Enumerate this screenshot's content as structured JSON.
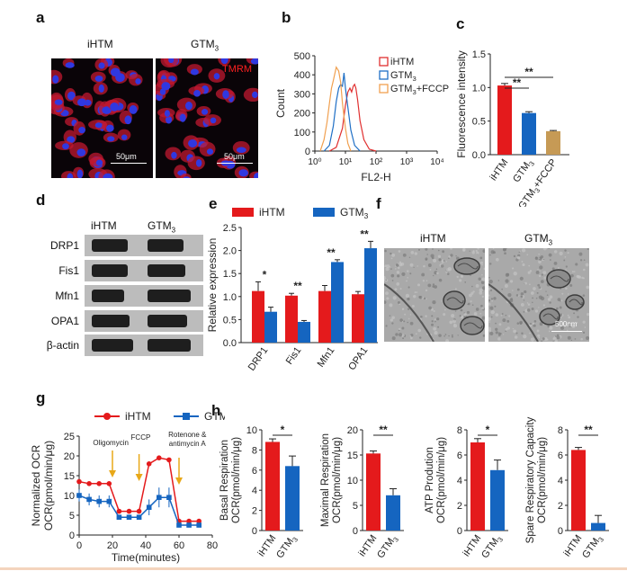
{
  "panels": {
    "a": "a",
    "b": "b",
    "c": "c",
    "d": "d",
    "e": "e",
    "f": "f",
    "g": "g",
    "h": "h"
  },
  "colors": {
    "ihtm": "#e41a1c",
    "gtm": "#1565c0",
    "fccp": "#c69a55",
    "ihtm_line": "#e03030",
    "gtm_line": "#1f6fc5",
    "fccp_line": "#f0a050"
  },
  "panel_a": {
    "left_title": "iHTM",
    "right_title": "GTM",
    "right_sub": "3",
    "stain": "TMRM",
    "scale_left": "50μm",
    "scale_right": "50μm"
  },
  "panel_d": {
    "col1": "iHTM",
    "col2": "GTM",
    "col2_sub": "3",
    "rows": [
      "DRP1",
      "Fis1",
      "Mfn1",
      "OPA1",
      "β-actin"
    ]
  },
  "panel_f": {
    "left_title": "iHTM",
    "right_title": "GTM",
    "right_sub": "3",
    "scale": "500nm"
  },
  "chart_data": [
    {
      "id": "b",
      "type": "line",
      "xlabel": "FL2-H",
      "ylabel": "Count",
      "xscale": "log",
      "xlim": [
        1,
        10000
      ],
      "ylim": [
        0,
        500
      ],
      "xticks": [
        "10⁰",
        "10¹",
        "10²",
        "10³",
        "10⁴"
      ],
      "yticks": [
        "0",
        "100",
        "200",
        "300",
        "400",
        "500"
      ],
      "legend": [
        "iHTM",
        "GTM₃",
        "GTM₃+FCCP"
      ],
      "legend_position": "top-right",
      "series": [
        {
          "name": "iHTM",
          "x": [
            3,
            5,
            8,
            10,
            12,
            14,
            16,
            18,
            20,
            22,
            25,
            30,
            40,
            60,
            100
          ],
          "y": [
            0,
            20,
            120,
            240,
            310,
            330,
            310,
            340,
            350,
            330,
            270,
            160,
            60,
            10,
            0
          ]
        },
        {
          "name": "GTM₃",
          "x": [
            2,
            3,
            4,
            5,
            6,
            7,
            8,
            9,
            10,
            12,
            15,
            20,
            30
          ],
          "y": [
            0,
            30,
            130,
            260,
            330,
            350,
            340,
            410,
            330,
            230,
            110,
            30,
            0
          ]
        },
        {
          "name": "GTM₃+FCCP",
          "x": [
            1.5,
            2,
            2.5,
            3,
            3.5,
            4,
            5,
            6,
            7,
            8,
            10,
            12,
            15
          ],
          "y": [
            0,
            60,
            150,
            250,
            330,
            370,
            440,
            420,
            360,
            250,
            120,
            40,
            0
          ]
        }
      ]
    },
    {
      "id": "c",
      "type": "bar",
      "ylabel": "Fluorescence  intensity",
      "ylim": [
        0,
        1.5
      ],
      "yticks": [
        "0.0",
        "0.5",
        "1.0",
        "1.5"
      ],
      "categories": [
        "iHTM",
        "GTM₃",
        "GTM₃+FCCP"
      ],
      "values": [
        1.03,
        0.62,
        0.35
      ],
      "errors": [
        0.03,
        0.02,
        0.01
      ],
      "significance": [
        "**",
        "**"
      ]
    },
    {
      "id": "e",
      "type": "bar",
      "ylabel": "Relative  expression",
      "ylim": [
        0,
        2.5
      ],
      "yticks": [
        "0.0",
        "0.5",
        "1.0",
        "1.5",
        "2.0",
        "2.5"
      ],
      "categories": [
        "DRP1",
        "Fis1",
        "Mfn1",
        "OPA1"
      ],
      "series": [
        {
          "name": "iHTM",
          "values": [
            1.12,
            1.02,
            1.12,
            1.05
          ],
          "errors": [
            0.2,
            0.05,
            0.12,
            0.06
          ]
        },
        {
          "name": "GTM₃",
          "values": [
            0.67,
            0.45,
            1.75,
            2.05
          ],
          "errors": [
            0.1,
            0.03,
            0.05,
            0.15
          ]
        }
      ],
      "significance": [
        "*",
        "**",
        "**",
        "**"
      ],
      "legend_position": "top"
    },
    {
      "id": "g",
      "type": "line",
      "xlabel": "Time(minutes)",
      "ylabel_line1": "Normalized  OCR",
      "ylabel_line2": "OCR(pmol/min/μg)",
      "xlim": [
        0,
        80
      ],
      "ylim": [
        0,
        25
      ],
      "xticks": [
        "0",
        "20",
        "40",
        "60",
        "80"
      ],
      "yticks": [
        "0",
        "5",
        "10",
        "15",
        "20",
        "25"
      ],
      "annotations": [
        "Oligomycin",
        "FCCP",
        "Rotenone &",
        "antimycin A"
      ],
      "series": [
        {
          "name": "iHTM",
          "x": [
            0,
            6,
            12,
            18,
            24,
            30,
            36,
            42,
            48,
            54,
            60,
            66,
            72
          ],
          "y": [
            13.5,
            13,
            13,
            13,
            6,
            6,
            6,
            18,
            19.5,
            19,
            3.5,
            3.5,
            3.5
          ],
          "errors": [
            0.5,
            0.5,
            0.5,
            0.5,
            0.3,
            0.3,
            0.3,
            0.5,
            0.5,
            0.5,
            0.3,
            0.3,
            0.3
          ]
        },
        {
          "name": "GTM₃",
          "x": [
            0,
            6,
            12,
            18,
            24,
            30,
            36,
            42,
            48,
            54,
            60,
            66,
            72
          ],
          "y": [
            10,
            9,
            8.5,
            8.5,
            4.5,
            4.5,
            4.5,
            7,
            9.5,
            9.5,
            2.5,
            2.5,
            2.5
          ],
          "errors": [
            1.5,
            1.5,
            1.5,
            1.5,
            0.5,
            0.5,
            0.5,
            2,
            2.5,
            2.5,
            0.5,
            0.5,
            0.5
          ]
        }
      ]
    },
    {
      "id": "h1",
      "type": "bar",
      "ylabel_line1": "Basal  Respiration",
      "ylabel_line2": "OCR(pmol/min/μg)",
      "ylim": [
        0,
        10
      ],
      "yticks": [
        "0",
        "2",
        "4",
        "6",
        "8",
        "10"
      ],
      "categories": [
        "iHTM",
        "GTM₃"
      ],
      "values": [
        8.8,
        6.4
      ],
      "errors": [
        0.3,
        1.0
      ],
      "significance": "*"
    },
    {
      "id": "h2",
      "type": "bar",
      "ylabel_line1": "Maximal  Respiration",
      "ylabel_line2": "OCR(pmol/min/μg)",
      "ylim": [
        0,
        20
      ],
      "yticks": [
        "0",
        "5",
        "10",
        "15",
        "20"
      ],
      "categories": [
        "iHTM",
        "GTM₃"
      ],
      "values": [
        15.3,
        7.0
      ],
      "errors": [
        0.5,
        1.3
      ],
      "significance": "**"
    },
    {
      "id": "h3",
      "type": "bar",
      "ylabel_line1": "ATP  Prodution",
      "ylabel_line2": "OCR(pmol/min/μg)",
      "ylim": [
        0,
        8
      ],
      "yticks": [
        "0",
        "2",
        "4",
        "6",
        "8"
      ],
      "categories": [
        "iHTM",
        "GTM₃"
      ],
      "values": [
        7.0,
        4.8
      ],
      "errors": [
        0.3,
        0.8
      ],
      "significance": "*"
    },
    {
      "id": "h4",
      "type": "bar",
      "ylabel_line1": "Spare  Respiratory  Capacity",
      "ylabel_line2": "OCR(pmol/min/μg)",
      "ylim": [
        0,
        8
      ],
      "yticks": [
        "0",
        "2",
        "4",
        "6",
        "8"
      ],
      "categories": [
        "iHTM",
        "GTM₃"
      ],
      "values": [
        6.4,
        0.6
      ],
      "errors": [
        0.2,
        0.6
      ],
      "significance": "**"
    }
  ]
}
